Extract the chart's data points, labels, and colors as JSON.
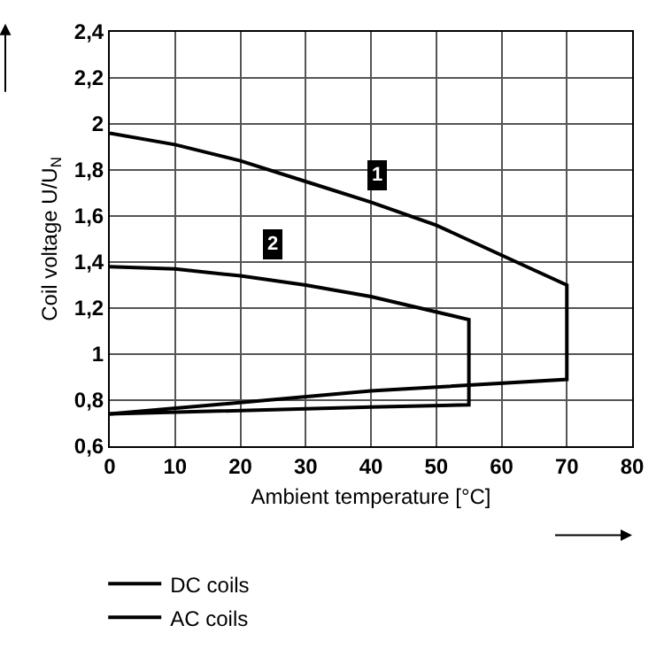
{
  "chart_data": {
    "type": "line",
    "xlabel": "Ambient temperature [°C]",
    "ylabel": "Coil voltage U/U$_{N}$",
    "series": [
      {
        "name": "DC coils",
        "color": "#000000",
        "x": [
          0,
          10,
          20,
          30,
          40,
          50,
          60,
          70,
          70,
          40,
          0
        ],
        "values": [
          1.96,
          1.91,
          1.84,
          1.75,
          1.66,
          1.56,
          1.43,
          1.3,
          0.89,
          0.84,
          0.74
        ]
      },
      {
        "name": "AC coils",
        "color": "#000000",
        "x": [
          0,
          10,
          20,
          30,
          40,
          55,
          55,
          40,
          0
        ],
        "values": [
          1.38,
          1.37,
          1.34,
          1.3,
          1.25,
          1.15,
          0.78,
          0.77,
          0.74
        ]
      }
    ],
    "annotations": [
      {
        "text": "1",
        "x": 41,
        "y": 1.78
      },
      {
        "text": "2",
        "x": 25,
        "y": 1.48
      }
    ],
    "xlim": [
      0,
      80
    ],
    "xticks": [
      0,
      10,
      20,
      30,
      40,
      50,
      60,
      70,
      80
    ],
    "ylim": [
      0.6,
      2.4
    ],
    "yticks": [
      {
        "value": 0.6,
        "label": "0,6"
      },
      {
        "value": 0.8,
        "label": "0,8"
      },
      1,
      {
        "value": 1.2,
        "label": "1,2"
      },
      {
        "value": 1.4,
        "label": "1,4"
      },
      {
        "value": 1.6,
        "label": "1,6"
      },
      {
        "value": 1.8,
        "label": "1,8"
      },
      2,
      {
        "value": 2.2,
        "label": "2,2"
      },
      {
        "value": 2.4,
        "label": "2,4"
      }
    ],
    "grid": true,
    "legend": "bottom left",
    "marker": "none",
    "line_style": "solid"
  }
}
